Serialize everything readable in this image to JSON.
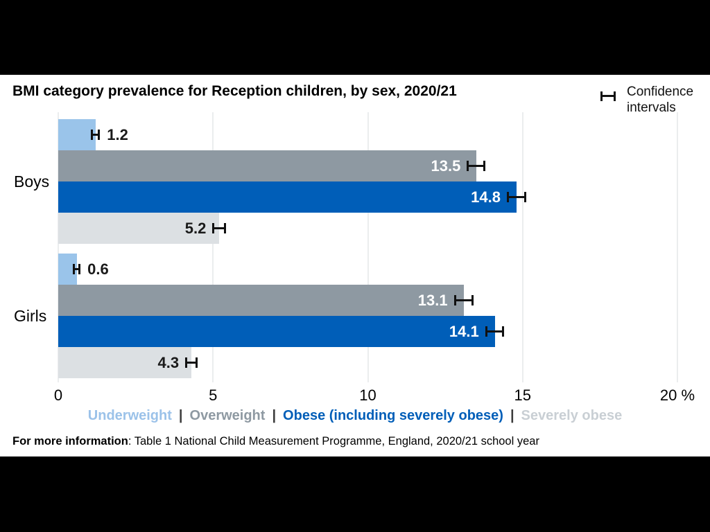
{
  "title": "BMI category prevalence for Reception children, by sex, 2020/21",
  "ci_legend_label": "Confidence intervals",
  "footer": {
    "bold": "For more information",
    "rest": ": Table 1 National Child Measurement Programme, England, 2020/21 school year"
  },
  "legend": {
    "separator": "|",
    "items": [
      {
        "label": "Underweight",
        "color": "#9BC2E9"
      },
      {
        "label": "Overweight",
        "color": "#8E99A2"
      },
      {
        "label": "Obese (including severely obese)",
        "color": "#005EB8"
      },
      {
        "label": "Severely obese",
        "color": "#C9CFD4"
      }
    ]
  },
  "chart_data": {
    "type": "bar",
    "orientation": "horizontal",
    "title": "BMI category prevalence for Reception children, by sex, 2020/21",
    "xlabel": "%",
    "xlim": [
      0,
      20
    ],
    "grid": true,
    "xticks": [
      {
        "value": 0,
        "label": "0"
      },
      {
        "value": 5,
        "label": "5"
      },
      {
        "value": 10,
        "label": "10"
      },
      {
        "value": 15,
        "label": "15"
      },
      {
        "value": 20,
        "label": "20 %"
      }
    ],
    "categories": [
      {
        "label": "Underweight",
        "color": "#9AC4EA",
        "value_label_style": "outside"
      },
      {
        "label": "Overweight",
        "color": "#8E99A2",
        "value_label_style": "inside-white"
      },
      {
        "label": "Obese (including severely obese)",
        "color": "#005EB8",
        "value_label_style": "inside-white"
      },
      {
        "label": "Severely obese",
        "color": "#DCE0E3",
        "value_label_style": "inside-dark"
      }
    ],
    "groups": [
      {
        "label": "Boys",
        "values": [
          1.2,
          13.5,
          14.8,
          5.2
        ],
        "ci_halfwidth_est": [
          0.15,
          0.3,
          0.31,
          0.22
        ]
      },
      {
        "label": "Girls",
        "values": [
          0.6,
          13.1,
          14.1,
          4.3
        ],
        "ci_halfwidth_est": [
          0.12,
          0.32,
          0.31,
          0.2
        ]
      }
    ],
    "error_bars": "confidence intervals shown at end of each bar"
  }
}
